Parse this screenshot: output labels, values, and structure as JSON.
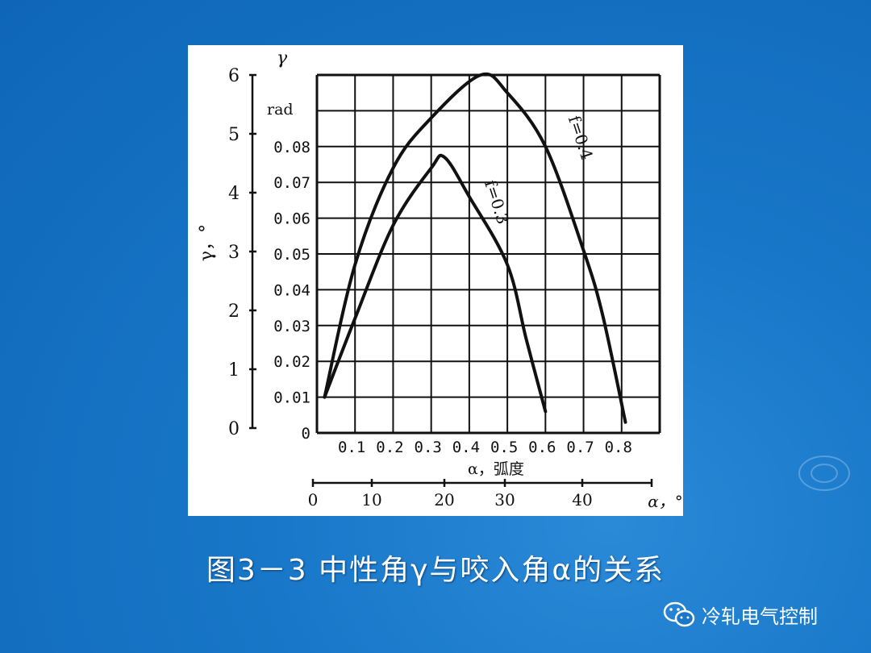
{
  "caption": "图3－3 中性角γ与咬入角α的关系",
  "watermark": "冷轧电气控制",
  "watermark_icon": "wechat-icon",
  "colors": {
    "background": "#1877c8",
    "curve": "#111111",
    "caption": "#ffffff"
  },
  "chart_data": {
    "type": "line",
    "title": "",
    "xlabel": "α，弧度",
    "xlabel_secondary": "α，°",
    "ylabel": "γ",
    "ylabel_unit": "rad",
    "ylabel_secondary": "γ，°",
    "xlim": [
      0,
      0.9
    ],
    "ylim": [
      0,
      0.1
    ],
    "x_ticks": [
      "0.1",
      "0.2",
      "0.3",
      "0.4",
      "0.5",
      "0.6",
      "0.7",
      "0.8"
    ],
    "y_ticks": [
      "0",
      "0.01",
      "0.02",
      "0.03",
      "0.04",
      "0.05",
      "0.06",
      "0.07",
      "0.08"
    ],
    "y_secondary_ticks": [
      "0",
      "1",
      "2",
      "3",
      "4",
      "5",
      "6"
    ],
    "x_secondary_ticks": [
      "0",
      "10",
      "20",
      "30",
      "40"
    ],
    "grid": true,
    "series": [
      {
        "name": "f=0.4",
        "x": [
          0.02,
          0.1,
          0.2,
          0.3,
          0.43,
          0.5,
          0.6,
          0.7,
          0.75,
          0.81
        ],
        "y": [
          0.01,
          0.047,
          0.074,
          0.088,
          0.1,
          0.095,
          0.08,
          0.051,
          0.033,
          0.003
        ]
      },
      {
        "name": "f=0.3",
        "x": [
          0.02,
          0.1,
          0.2,
          0.3,
          0.335,
          0.4,
          0.5,
          0.55,
          0.6
        ],
        "y": [
          0.01,
          0.032,
          0.058,
          0.074,
          0.077,
          0.066,
          0.047,
          0.026,
          0.006
        ]
      }
    ]
  }
}
